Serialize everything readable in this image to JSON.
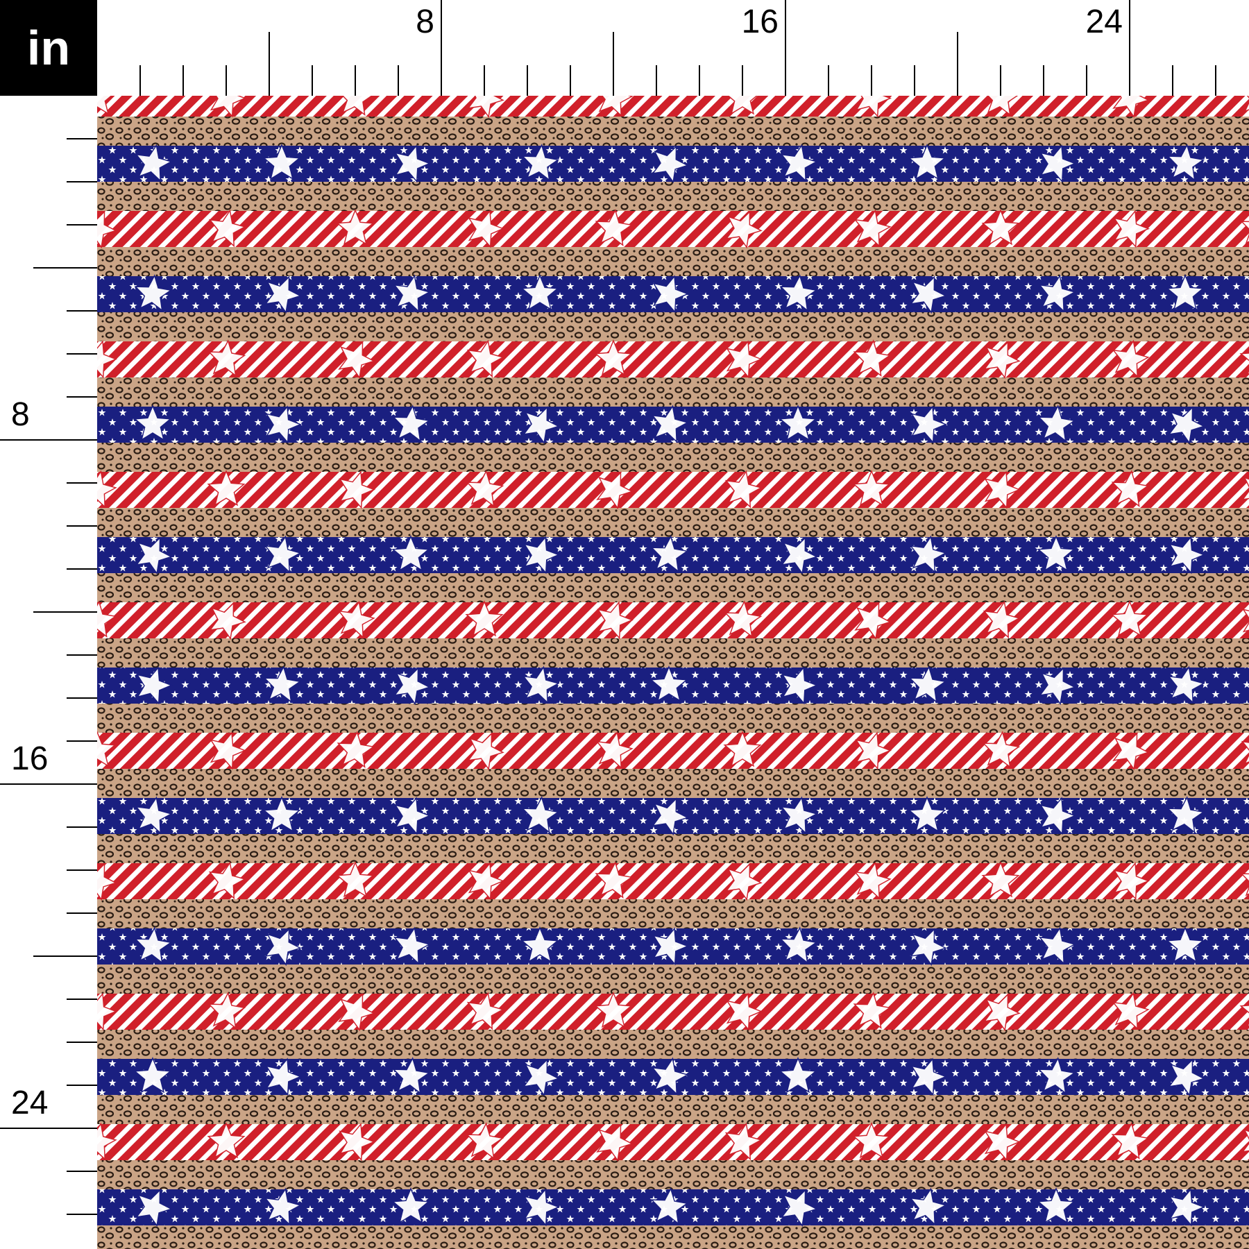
{
  "unit_label": "in",
  "ruler": {
    "top_labels": [
      "8",
      "16",
      "24"
    ],
    "left_labels": [
      "8",
      "16",
      "24"
    ]
  },
  "fabric": {
    "pattern": "patriotic stripes with leopard print",
    "band_sequence": [
      "red-diagonal-stripes-with-stars",
      "leopard",
      "navy-with-stars",
      "leopard"
    ],
    "colors": {
      "red": "#d0202a",
      "navy": "#1a1f80",
      "leopard_base": "#caa486",
      "leopard_spot": "#2b1d14",
      "white": "#ffffff"
    },
    "icons": [
      "star-icon"
    ]
  }
}
